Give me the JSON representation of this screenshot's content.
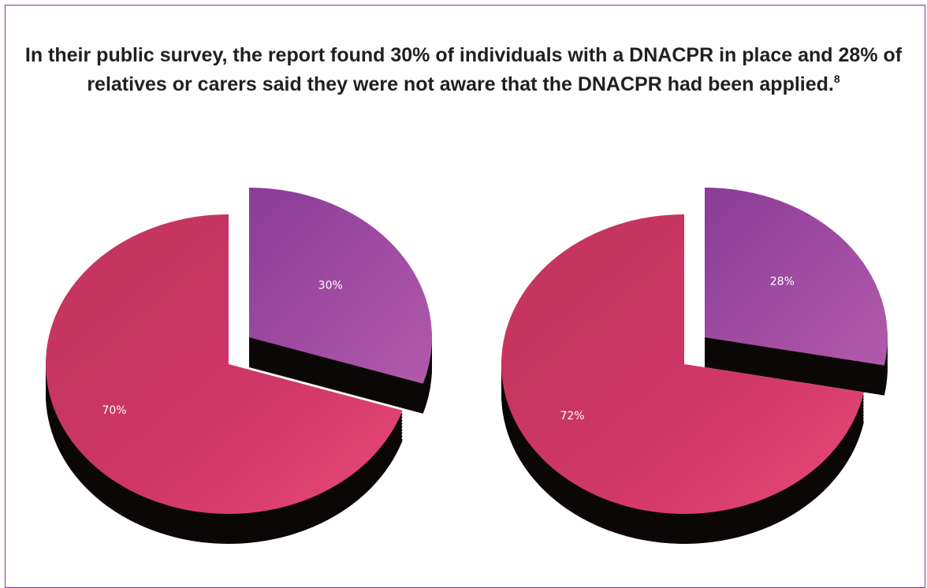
{
  "headline": {
    "text": "In their public survey, the report found 30% of individuals with a DNACPR in place and 28% of relatives or carers said they were not aware that the DNACPR had been applied.",
    "footnote": "8"
  },
  "colors": {
    "border": "#8a2e8f",
    "purple_slice": "#9b4aa3",
    "pink_slice": "#cc3566",
    "side": "#0b0707"
  },
  "chart_data": [
    {
      "type": "pie",
      "style": "3d-exploded",
      "values": [
        30,
        70
      ],
      "labels": [
        "30%",
        "70%"
      ],
      "colors": [
        "#9b4aa3",
        "#cc3566"
      ]
    },
    {
      "type": "pie",
      "style": "3d-exploded",
      "values": [
        28,
        72
      ],
      "labels": [
        "28%",
        "72%"
      ],
      "colors": [
        "#9b4aa3",
        "#cc3566"
      ]
    }
  ]
}
